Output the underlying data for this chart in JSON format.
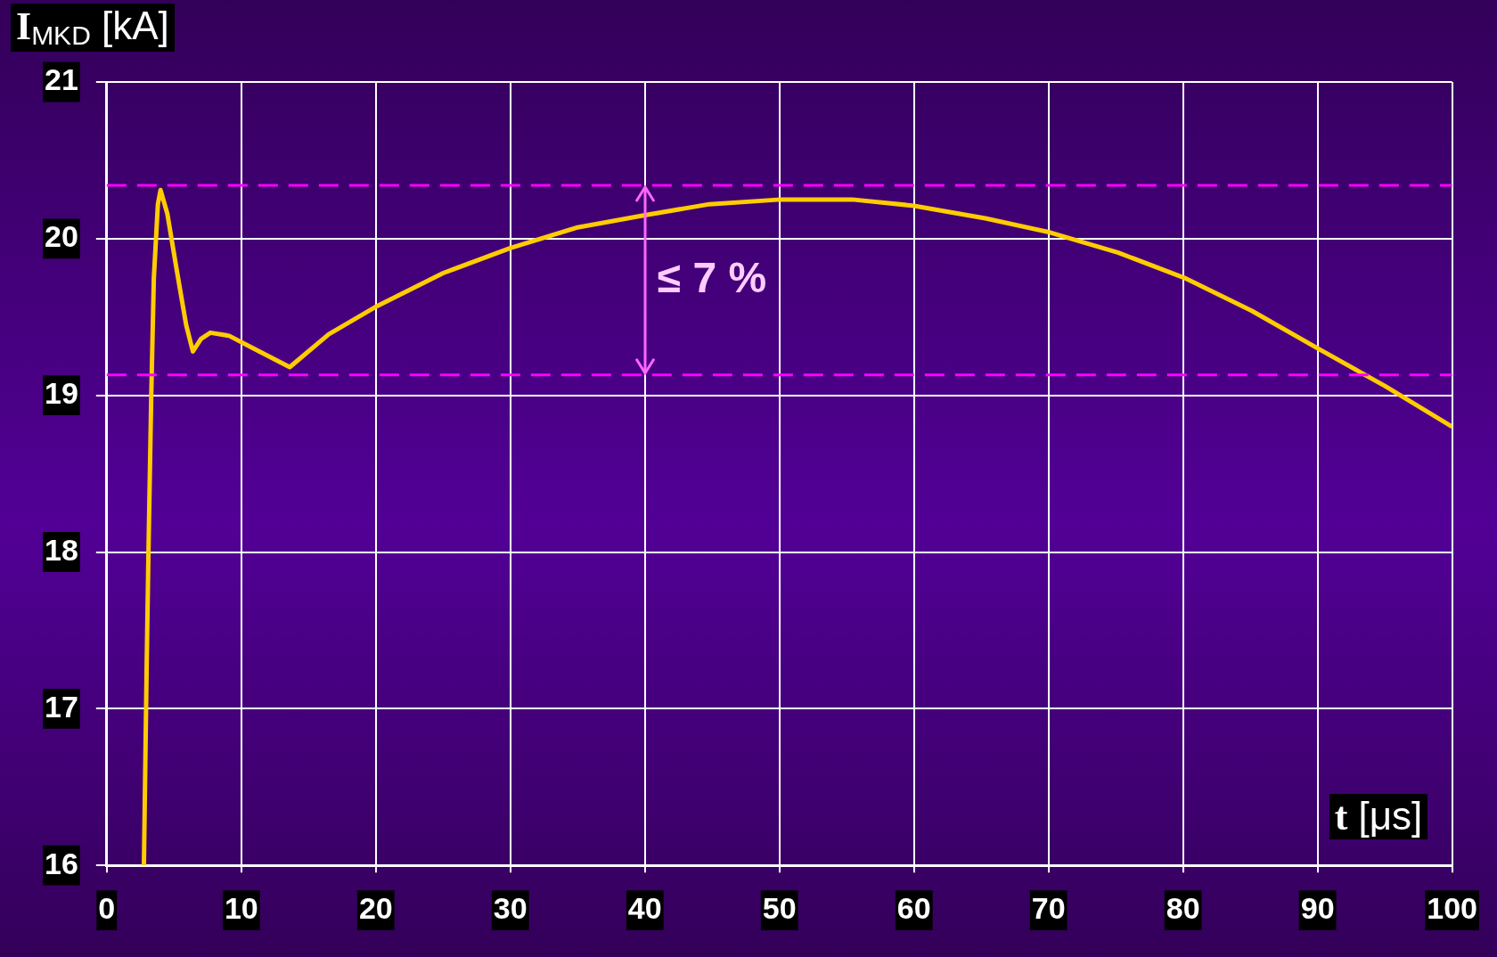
{
  "chart_data": {
    "type": "line",
    "ylabel": "I$_{MKD}$ [kA]",
    "xlabel": "t [μs]",
    "xlim": [
      0,
      100
    ],
    "xticks": [
      0,
      10,
      20,
      30,
      40,
      50,
      60,
      70,
      80,
      90,
      100
    ],
    "ylim": [
      16,
      21
    ],
    "yticks": [
      16,
      17,
      18,
      19,
      20,
      21
    ],
    "grid": true,
    "legend": false,
    "marker": "none",
    "line_style": "solid",
    "series": [
      {
        "color": "#ffcc00",
        "x": [
          2.76,
          2.97,
          3.1,
          3.3,
          3.5,
          3.8,
          4.0,
          4.5,
          5.2,
          5.9,
          6.4,
          7.0,
          7.7,
          9.1,
          10.9,
          13.6,
          16.5,
          20.1,
          25,
          30,
          34.9,
          40,
          44.8,
          50.1,
          55.4,
          60,
          65.3,
          70.1,
          75.2,
          80.1,
          85.1,
          90,
          95,
          100
        ],
        "values": [
          16.0,
          17.3,
          18.0,
          18.97,
          19.75,
          20.22,
          20.31,
          20.16,
          19.8,
          19.45,
          19.28,
          19.36,
          19.4,
          19.38,
          19.3,
          19.18,
          19.39,
          19.57,
          19.78,
          19.94,
          20.07,
          20.15,
          20.22,
          20.25,
          20.25,
          20.21,
          20.13,
          20.04,
          19.91,
          19.75,
          19.54,
          19.3,
          19.06,
          18.8
        ]
      }
    ],
    "ref_lines": [
      {
        "axis": "y",
        "value": 20.34,
        "color": "#ff00ff",
        "line_style": "dashed"
      },
      {
        "axis": "y",
        "value": 19.13,
        "color": "#ff00ff",
        "line_style": "dashed"
      }
    ],
    "annotations": [
      {
        "text": "≤ 7 %",
        "x": 40,
        "y": 20.34
      }
    ]
  }
}
